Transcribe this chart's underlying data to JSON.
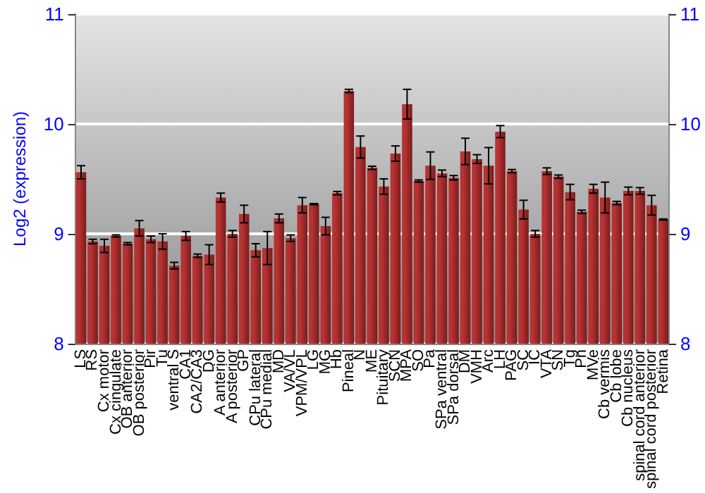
{
  "chart_data": {
    "type": "bar",
    "ylabel": "Log2 (expression)",
    "categories": [
      "LS",
      "RS",
      "Cx motor",
      "Cx cingulate",
      "OB anterior",
      "OB posterior",
      "Pir",
      "Tu",
      "ventral S",
      "CA1",
      "CA2/CA3",
      "DG",
      "A anterior",
      "A posterior",
      "GP",
      "CPu lateral",
      "CPu medial",
      "MD",
      "VA/VL",
      "VPM/VPL",
      "LG",
      "MG",
      "Hb",
      "Pineal",
      "N",
      "ME",
      "Pituitary",
      "SCN",
      "MPA",
      "SO",
      "Pa",
      "SPa ventral",
      "SPa dorsal",
      "DM",
      "VMH",
      "Arc",
      "LH",
      "PAG",
      "SC",
      "IC",
      "VTA",
      "SN",
      "Tg",
      "Pn",
      "MVe",
      "Cb vermis",
      "Cb lobe",
      "Cb nucleus",
      "spinal cord anterior",
      "spinal cord posterior",
      "Retina"
    ],
    "values": [
      9.56,
      8.93,
      8.89,
      8.98,
      8.91,
      9.05,
      8.95,
      8.93,
      8.71,
      8.98,
      8.8,
      8.81,
      9.33,
      9.0,
      9.18,
      8.85,
      8.87,
      9.14,
      8.96,
      9.26,
      9.27,
      9.07,
      9.37,
      10.3,
      9.79,
      9.6,
      9.43,
      9.73,
      10.18,
      9.48,
      9.62,
      9.55,
      9.51,
      9.75,
      9.68,
      9.62,
      9.93,
      9.57,
      9.22,
      9.0,
      9.57,
      9.52,
      9.38,
      9.2,
      9.41,
      9.33,
      9.28,
      9.39,
      9.39,
      9.26,
      9.13
    ],
    "errors": [
      0.06,
      0.02,
      0.06,
      0.01,
      0.01,
      0.07,
      0.03,
      0.07,
      0.03,
      0.04,
      0.015,
      0.09,
      0.04,
      0.03,
      0.08,
      0.06,
      0.15,
      0.04,
      0.03,
      0.07,
      0.005,
      0.08,
      0.015,
      0.015,
      0.1,
      0.015,
      0.07,
      0.07,
      0.135,
      0.01,
      0.125,
      0.03,
      0.02,
      0.12,
      0.04,
      0.165,
      0.055,
      0.015,
      0.085,
      0.03,
      0.03,
      0.015,
      0.07,
      0.015,
      0.04,
      0.14,
      0.015,
      0.035,
      0.03,
      0.09,
      0.005
    ],
    "color": "#b83232",
    "ylim": [
      8,
      11
    ],
    "yticks": [
      8,
      9,
      10,
      11
    ],
    "y2lim": [
      8,
      11
    ],
    "y2ticks": [
      8,
      9,
      10,
      11
    ],
    "grid": "y"
  }
}
